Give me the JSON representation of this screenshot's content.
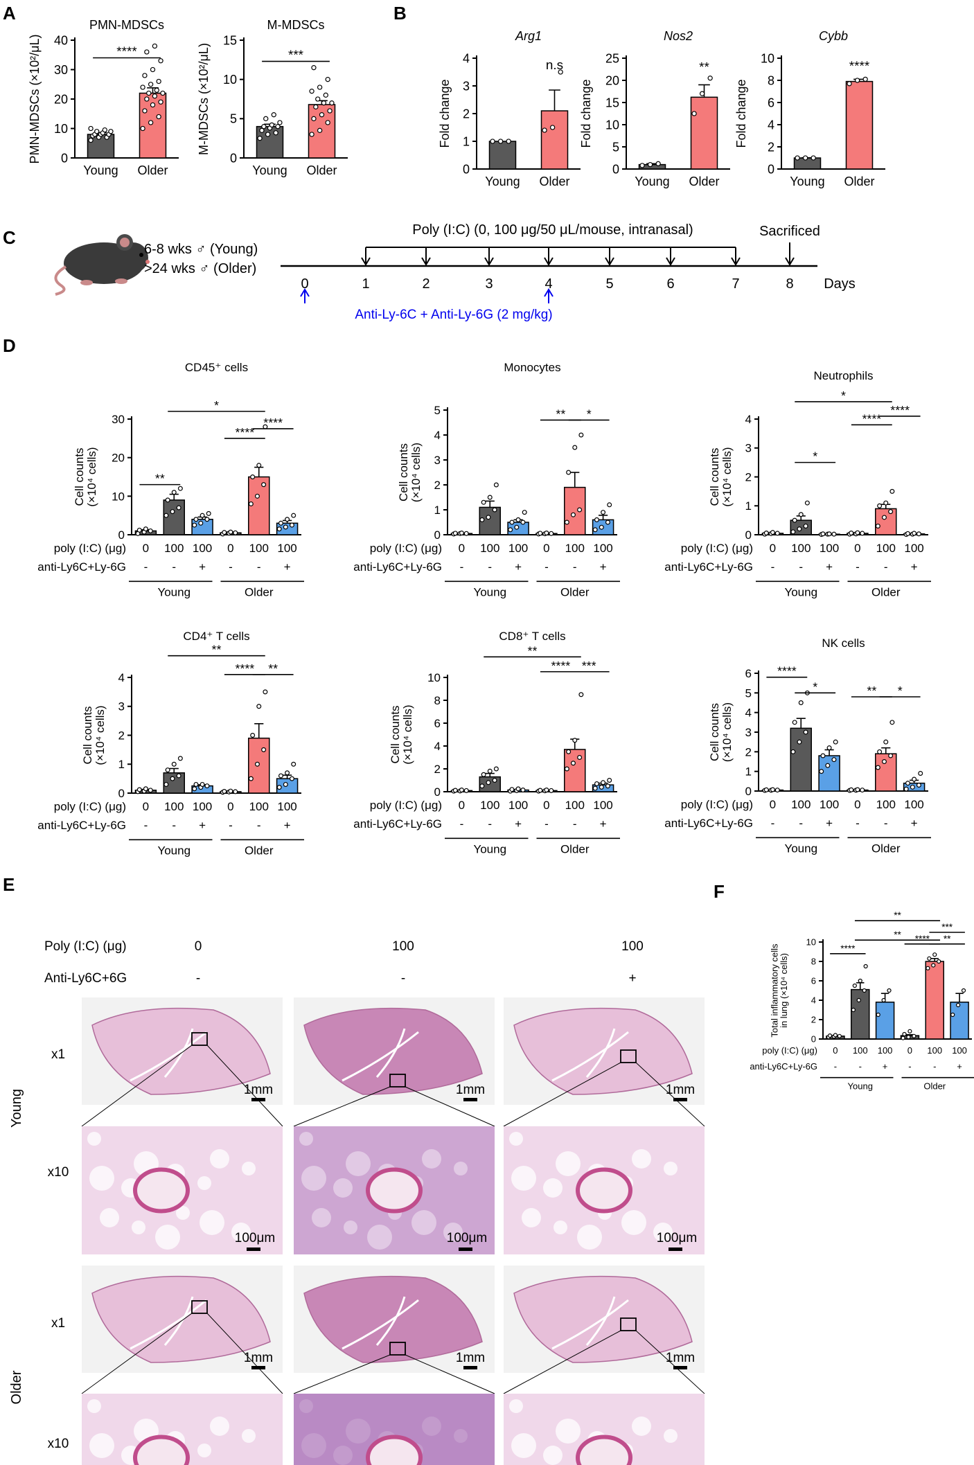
{
  "panels": {
    "A": "A",
    "B": "B",
    "C": "C",
    "D": "D",
    "E": "E",
    "F": "F"
  },
  "colors": {
    "young": "#595959",
    "older": "#f47a7a",
    "blocked": "#5aa0e6",
    "axis": "#000000",
    "timeline_blue": "#0000ee"
  },
  "group_labels": {
    "young": "Young",
    "older": "Older"
  },
  "row_labels": {
    "poly": "poly (I:C) (μg)",
    "anti": "anti-Ly6C+Ly-6G"
  },
  "chart_data": [
    {
      "id": "A1",
      "type": "bar",
      "title": "PMN-MDSCs",
      "ylabel": "PMN-MDSCs (×10²/μL)",
      "ylim": [
        0,
        40
      ],
      "yticks": [
        0,
        10,
        20,
        30,
        40
      ],
      "categories": [
        "Young",
        "Older"
      ],
      "values": [
        8,
        22
      ],
      "sem": [
        0.6,
        1.8
      ],
      "points": [
        [
          6,
          7,
          7,
          7.5,
          8,
          8,
          8,
          8.5,
          9,
          9,
          9.5,
          10
        ],
        [
          10,
          12,
          14,
          16,
          18,
          19,
          20,
          21,
          22,
          22,
          23,
          24,
          25,
          26,
          28,
          30,
          33,
          36,
          38
        ]
      ],
      "sig": [
        {
          "a": 0,
          "b": 1,
          "label": "****",
          "level": 34
        }
      ]
    },
    {
      "id": "A2",
      "type": "bar",
      "title": "M-MDSCs",
      "ylabel": "M-MDSCs (×10²/μL)",
      "ylim": [
        0,
        15
      ],
      "yticks": [
        0,
        5,
        10,
        15
      ],
      "categories": [
        "Young",
        "Older"
      ],
      "values": [
        4,
        6.8
      ],
      "sem": [
        0.3,
        0.5
      ],
      "points": [
        [
          2.5,
          3,
          3.2,
          3.5,
          3.8,
          4,
          4,
          4.2,
          4.5,
          5,
          5.5
        ],
        [
          3,
          3.5,
          4.5,
          5,
          5.5,
          6,
          6.5,
          7,
          7,
          7.5,
          8,
          8.5,
          9,
          10,
          11.5
        ]
      ],
      "sig": [
        {
          "a": 0,
          "b": 1,
          "label": "***",
          "level": 12.3
        }
      ]
    },
    {
      "id": "B1",
      "type": "bar",
      "title": "Arg1",
      "ylabel": "Fold change",
      "ylim": [
        0,
        4
      ],
      "yticks": [
        0,
        1,
        2,
        3,
        4
      ],
      "categories": [
        "Young",
        "Older"
      ],
      "values": [
        1,
        2.1
      ],
      "sem": [
        0,
        0.75
      ],
      "points": [
        [
          1,
          1,
          1
        ],
        [
          1.4,
          1.5,
          3.5
        ]
      ],
      "sig": [
        {
          "a": 1,
          "label": "n.s",
          "level": 3.6
        }
      ]
    },
    {
      "id": "B2",
      "type": "bar",
      "title": "Nos2",
      "ylabel": "Fold change",
      "ylim": [
        0,
        25
      ],
      "yticks": [
        0,
        5,
        10,
        15,
        20,
        25
      ],
      "categories": [
        "Young",
        "Older"
      ],
      "values": [
        1,
        16.2
      ],
      "sem": [
        0.2,
        2.8
      ],
      "points": [
        [
          0.8,
          1,
          1.2
        ],
        [
          12.5,
          17,
          20.5
        ]
      ],
      "sig": [
        {
          "a": 1,
          "label": "**",
          "level": 22
        }
      ]
    },
    {
      "id": "B3",
      "type": "bar",
      "title": "Cybb",
      "ylabel": "Fold change",
      "ylim": [
        0,
        10
      ],
      "yticks": [
        0,
        2,
        4,
        6,
        8,
        10
      ],
      "categories": [
        "Young",
        "Older"
      ],
      "values": [
        1,
        7.9
      ],
      "sem": [
        0.02,
        0.2
      ],
      "points": [
        [
          1,
          1,
          1
        ],
        [
          7.7,
          8,
          8.1
        ]
      ],
      "sig": [
        {
          "a": 1,
          "label": "****",
          "level": 8.9
        }
      ]
    },
    {
      "id": "D1",
      "type": "bar",
      "title": "CD45⁺ cells",
      "ylabel": "Cell counts",
      "ylabel2": "(×10⁴ cells)",
      "ylim": [
        0,
        30
      ],
      "yticks": [
        0,
        10,
        20,
        30
      ],
      "poly": [
        "0",
        "100",
        "100",
        "0",
        "100",
        "100"
      ],
      "anti": [
        "-",
        "-",
        "+",
        "-",
        "-",
        "+"
      ],
      "values": [
        1,
        9,
        4,
        0.5,
        15,
        3
      ],
      "sem": [
        0.3,
        1.5,
        0.6,
        0.2,
        2.5,
        0.7
      ],
      "points": [
        [
          0.3,
          0.7,
          1,
          1.2,
          1.5
        ],
        [
          5,
          6,
          7,
          9,
          11,
          12
        ],
        [
          2.5,
          3,
          4,
          4,
          5,
          5.5
        ],
        [
          0.2,
          0.4,
          0.5,
          0.6,
          0.7
        ],
        [
          8,
          10,
          13,
          15,
          18,
          28
        ],
        [
          1.5,
          2,
          2.5,
          3,
          4,
          5
        ]
      ],
      "sig": [
        {
          "a": 0,
          "b": 1,
          "label": "**",
          "level": 13
        },
        {
          "a": 3,
          "b": 4,
          "label": "****",
          "level": 25
        },
        {
          "a": 4,
          "b": 5,
          "label": "****",
          "level": 27.5
        },
        {
          "a": 1,
          "b": 4,
          "label": "*",
          "level": 32
        }
      ]
    },
    {
      "id": "D2",
      "type": "bar",
      "title": "Monocytes",
      "ylabel": "Cell counts",
      "ylabel2": "(×10⁴ cells)",
      "ylim": [
        0,
        5
      ],
      "yticks": [
        0,
        1,
        2,
        3,
        4,
        5
      ],
      "poly": [
        "0",
        "100",
        "100",
        "0",
        "100",
        "100"
      ],
      "anti": [
        "-",
        "-",
        "+",
        "-",
        "-",
        "+"
      ],
      "values": [
        0.05,
        1.1,
        0.5,
        0.05,
        1.9,
        0.6
      ],
      "sem": [
        0.01,
        0.25,
        0.1,
        0.01,
        0.6,
        0.18
      ],
      "points": [
        [
          0.03,
          0.05,
          0.05,
          0.06,
          0.07
        ],
        [
          0.6,
          0.7,
          1,
          1.3,
          1.5,
          2
        ],
        [
          0.2,
          0.3,
          0.5,
          0.5,
          0.6,
          0.9
        ],
        [
          0.03,
          0.04,
          0.05,
          0.06,
          0.07
        ],
        [
          0.5,
          0.8,
          1,
          2.5,
          3.5,
          4
        ],
        [
          0.2,
          0.3,
          0.5,
          0.6,
          0.9,
          1.2
        ]
      ],
      "sig": [
        {
          "a": 3,
          "b": 4,
          "label": "**",
          "level": 4.6
        },
        {
          "a": 4,
          "b": 5,
          "label": "*",
          "level": 4.6
        }
      ]
    },
    {
      "id": "D3",
      "type": "bar",
      "title": "Neutrophils",
      "ylabel": "Cell counts",
      "ylabel2": "(×10⁴ cells)",
      "ylim": [
        0,
        4
      ],
      "yticks": [
        0,
        1,
        2,
        3,
        4
      ],
      "poly": [
        "0",
        "100",
        "100",
        "0",
        "100",
        "100"
      ],
      "anti": [
        "-",
        "-",
        "+",
        "-",
        "-",
        "+"
      ],
      "values": [
        0.05,
        0.5,
        0.02,
        0.05,
        0.9,
        0.03
      ],
      "sem": [
        0.02,
        0.15,
        0.01,
        0.02,
        0.15,
        0.01
      ],
      "points": [
        [
          0.02,
          0.04,
          0.05,
          0.06,
          0.08
        ],
        [
          0.1,
          0.2,
          0.3,
          0.5,
          0.7,
          1.1
        ],
        [
          0.01,
          0.02,
          0.02,
          0.03,
          0.03
        ],
        [
          0.02,
          0.03,
          0.05,
          0.06,
          0.07
        ],
        [
          0.3,
          0.6,
          0.8,
          1,
          1.1,
          1.5
        ],
        [
          0.01,
          0.02,
          0.03,
          0.04,
          0.05
        ]
      ],
      "sig": [
        {
          "a": 1,
          "b": 2,
          "label": "*",
          "level": 2.5
        },
        {
          "a": 3,
          "b": 4,
          "label": "****",
          "level": 3.8
        },
        {
          "a": 4,
          "b": 5,
          "label": "****",
          "level": 4.1
        },
        {
          "a": 1,
          "b": 4,
          "label": "*",
          "level": 4.6
        }
      ]
    },
    {
      "id": "D4",
      "type": "bar",
      "title": "CD4⁺ T cells",
      "ylabel": "Cell counts",
      "ylabel2": "(×10⁴ cells)",
      "ylim": [
        0,
        4
      ],
      "yticks": [
        0,
        1,
        2,
        3,
        4
      ],
      "poly": [
        "0",
        "100",
        "100",
        "0",
        "100",
        "100"
      ],
      "anti": [
        "-",
        "-",
        "+",
        "-",
        "-",
        "+"
      ],
      "values": [
        0.1,
        0.7,
        0.25,
        0.05,
        1.9,
        0.5
      ],
      "sem": [
        0.03,
        0.15,
        0.04,
        0.02,
        0.5,
        0.12
      ],
      "points": [
        [
          0.05,
          0.07,
          0.1,
          0.12,
          0.15
        ],
        [
          0.3,
          0.5,
          0.6,
          0.8,
          1,
          1.2
        ],
        [
          0.15,
          0.2,
          0.25,
          0.3,
          0.3
        ],
        [
          0.03,
          0.04,
          0.05,
          0.06,
          0.07
        ],
        [
          0.5,
          1,
          1.5,
          2,
          3,
          3.5
        ],
        [
          0.2,
          0.3,
          0.5,
          0.6,
          0.7,
          1
        ]
      ],
      "sig": [
        {
          "a": 3,
          "b": 4,
          "label": "****",
          "level": 4.1
        },
        {
          "a": 4,
          "b": 5,
          "label": "**",
          "level": 4.1
        },
        {
          "a": 1,
          "b": 4,
          "label": "**",
          "level": 4.75
        }
      ]
    },
    {
      "id": "D5",
      "type": "bar",
      "title": "CD8⁺ T cells",
      "ylabel": "Cell counts",
      "ylabel2": "(×10⁴ cells)",
      "ylim": [
        0,
        10
      ],
      "yticks": [
        0,
        2,
        4,
        6,
        8,
        10
      ],
      "poly": [
        "0",
        "100",
        "100",
        "0",
        "100",
        "100"
      ],
      "anti": [
        "-",
        "-",
        "+",
        "-",
        "-",
        "+"
      ],
      "values": [
        0.1,
        1.3,
        0.15,
        0.1,
        3.7,
        0.6
      ],
      "sem": [
        0.02,
        0.3,
        0.04,
        0.02,
        0.9,
        0.15
      ],
      "points": [
        [
          0.05,
          0.07,
          0.1,
          0.12,
          0.15
        ],
        [
          0.5,
          0.8,
          1,
          1.5,
          1.8,
          2
        ],
        [
          0.05,
          0.1,
          0.15,
          0.2,
          0.25
        ],
        [
          0.05,
          0.08,
          0.1,
          0.12,
          0.15
        ],
        [
          2,
          2.5,
          3,
          3.5,
          4.5,
          8.5
        ],
        [
          0.3,
          0.4,
          0.5,
          0.7,
          0.8,
          1
        ]
      ],
      "sig": [
        {
          "a": 3,
          "b": 4,
          "label": "****",
          "level": 10.5
        },
        {
          "a": 4,
          "b": 5,
          "label": "***",
          "level": 10.5
        },
        {
          "a": 1,
          "b": 4,
          "label": "**",
          "level": 11.8
        }
      ]
    },
    {
      "id": "D6",
      "type": "bar",
      "title": "NK cells",
      "ylabel": "Cell counts",
      "ylabel2": "(×10⁴ cells)",
      "ylim": [
        0,
        6
      ],
      "yticks": [
        0,
        1,
        2,
        3,
        4,
        5,
        6
      ],
      "poly": [
        "0",
        "100",
        "100",
        "0",
        "100",
        "100"
      ],
      "anti": [
        "-",
        "-",
        "+",
        "-",
        "-",
        "+"
      ],
      "values": [
        0.05,
        3.2,
        1.8,
        0.05,
        1.9,
        0.4
      ],
      "sem": [
        0.01,
        0.5,
        0.3,
        0.01,
        0.3,
        0.15
      ],
      "points": [
        [
          0.03,
          0.04,
          0.05,
          0.06,
          0.07
        ],
        [
          2,
          2.5,
          3,
          3.5,
          4.5,
          5
        ],
        [
          1,
          1.3,
          1.6,
          1.8,
          2.2,
          2.5
        ],
        [
          0.03,
          0.04,
          0.05,
          0.06,
          0.07
        ],
        [
          1.2,
          1.5,
          1.8,
          2,
          2.5,
          3.5
        ],
        [
          0.1,
          0.2,
          0.3,
          0.4,
          0.6,
          0.9
        ]
      ],
      "sig": [
        {
          "a": 0,
          "b": 1,
          "label": "****",
          "level": 5.8
        },
        {
          "a": 1,
          "b": 2,
          "label": "*",
          "level": 5
        },
        {
          "a": 3,
          "b": 4,
          "label": "**",
          "level": 4.8
        },
        {
          "a": 4,
          "b": 5,
          "label": "*",
          "level": 4.8
        }
      ]
    },
    {
      "id": "F",
      "type": "bar",
      "ylabel": "Total inflammatory cells",
      "ylabel2": "in lung (×10⁴ cells)",
      "ylim": [
        0,
        10
      ],
      "yticks": [
        0,
        2,
        4,
        6,
        8,
        10
      ],
      "poly": [
        "0",
        "100",
        "100",
        "0",
        "100",
        "100"
      ],
      "anti": [
        "-",
        "-",
        "+",
        "-",
        "-",
        "+"
      ],
      "values": [
        0.3,
        5.1,
        3.8,
        0.35,
        8,
        3.8
      ],
      "sem": [
        0.05,
        0.7,
        0.9,
        0.1,
        0.3,
        0.9
      ],
      "points": [
        [
          0.2,
          0.25,
          0.3,
          0.35,
          0.4
        ],
        [
          3,
          4,
          5,
          5.5,
          6,
          7.5
        ],
        [
          2.5,
          4,
          5
        ],
        [
          0.1,
          0.2,
          0.3,
          0.5,
          0.8
        ],
        [
          7.3,
          7.6,
          8,
          8.3,
          8.7
        ],
        [
          2.5,
          3.5,
          5
        ]
      ],
      "sig": [
        {
          "a": 0,
          "b": 1,
          "label": "****",
          "level": 8.8
        },
        {
          "a": 1,
          "b": 4,
          "label": "**",
          "level": 10.2
        },
        {
          "a": 3,
          "b": 4,
          "label": "****",
          "level": 9.8
        },
        {
          "a": 4,
          "b": 5,
          "label": "**",
          "level": 9.8
        },
        {
          "a": 4,
          "b": 5,
          "label": "***",
          "level": 11
        },
        {
          "a": 1,
          "b": 4,
          "label": "**",
          "level": 12.2
        }
      ]
    }
  ],
  "timeline": {
    "line1": "6-8 wks ♂ (Young)",
    "line2": ">24 wks ♂ (Older)",
    "treatment": "Poly (I:C) (0, 100 μg/50 μL/mouse, intranasal)",
    "sacrificed": "Sacrificed",
    "days": [
      "0",
      "1",
      "2",
      "3",
      "4",
      "5",
      "6",
      "7",
      "8"
    ],
    "days_label": "Days",
    "antibody": "Anti-Ly-6C + Anti-Ly-6G (2 mg/kg)"
  },
  "histology": {
    "header_poly": "Poly (I:C) (μg)",
    "header_anti": "Anti-Ly6C+6G",
    "cols_poly": [
      "0",
      "100",
      "100"
    ],
    "cols_anti": [
      "-",
      "-",
      "+"
    ],
    "mag1": "x1",
    "mag10": "x10",
    "scale1": "1mm",
    "scale10": "100μm",
    "row_young": "Young",
    "row_older": "Older"
  }
}
